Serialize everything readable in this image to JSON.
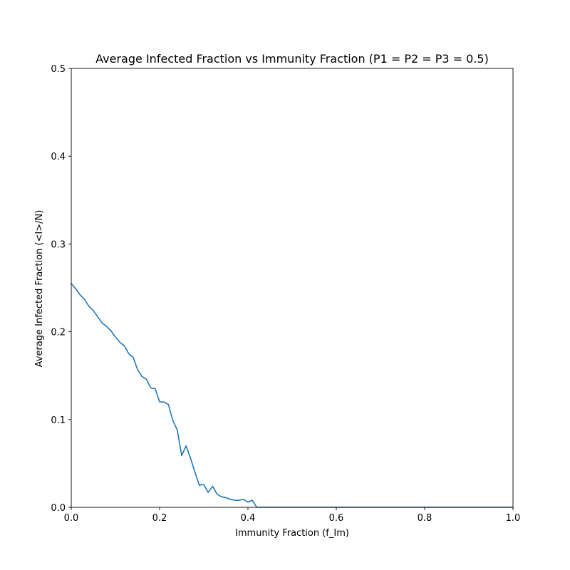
{
  "chart_data": {
    "type": "line",
    "title": "Average Infected Fraction vs Immunity Fraction (P1 = P2 = P3 = 0.5)",
    "xlabel": "Immunity Fraction (f_Im)",
    "ylabel": "Average Infected Fraction (<I>/N)",
    "xlim": [
      0,
      1.0
    ],
    "ylim": [
      0,
      0.5
    ],
    "xticks": [
      0.0,
      0.2,
      0.4,
      0.6,
      0.8,
      1.0
    ],
    "xtick_labels": [
      "0.0",
      "0.2",
      "0.4",
      "0.6",
      "0.8",
      "1.0"
    ],
    "yticks": [
      0.0,
      0.1,
      0.2,
      0.3,
      0.4,
      0.5
    ],
    "ytick_labels": [
      "0.0",
      "0.1",
      "0.2",
      "0.3",
      "0.4",
      "0.5"
    ],
    "grid": false,
    "legend": false,
    "series": [
      {
        "color": "#1f77b4",
        "x": [
          0.0,
          0.01,
          0.02,
          0.03,
          0.04,
          0.05,
          0.06,
          0.07,
          0.08,
          0.09,
          0.1,
          0.11,
          0.12,
          0.13,
          0.14,
          0.15,
          0.16,
          0.17,
          0.18,
          0.19,
          0.2,
          0.21,
          0.22,
          0.23,
          0.24,
          0.25,
          0.26,
          0.27,
          0.28,
          0.29,
          0.3,
          0.31,
          0.32,
          0.33,
          0.34,
          0.35,
          0.36,
          0.37,
          0.38,
          0.39,
          0.4,
          0.41,
          0.42,
          0.43,
          0.44,
          0.45,
          0.5,
          0.6,
          0.7,
          0.8,
          0.9,
          1.0
        ],
        "y": [
          0.255,
          0.249,
          0.242,
          0.237,
          0.229,
          0.224,
          0.217,
          0.21,
          0.206,
          0.201,
          0.194,
          0.188,
          0.184,
          0.175,
          0.171,
          0.157,
          0.149,
          0.146,
          0.136,
          0.135,
          0.12,
          0.12,
          0.117,
          0.099,
          0.088,
          0.059,
          0.07,
          0.056,
          0.04,
          0.025,
          0.026,
          0.017,
          0.024,
          0.015,
          0.012,
          0.011,
          0.009,
          0.008,
          0.008,
          0.009,
          0.006,
          0.008,
          0.0,
          0.0,
          0.0,
          0.0,
          0.0,
          0.0,
          0.0,
          0.0,
          0.0,
          0.0
        ]
      }
    ]
  }
}
